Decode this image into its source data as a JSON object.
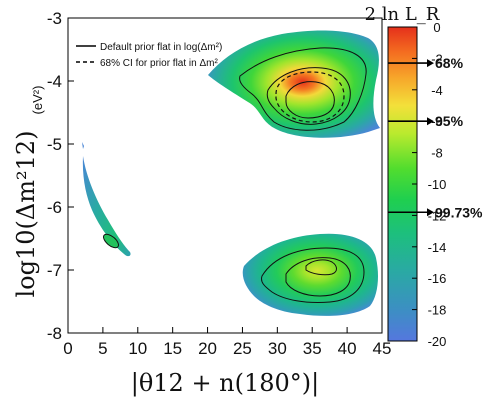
{
  "chart_data": {
    "type": "heatmap",
    "title": "",
    "xlabel": "|θ12 + n(180°)|",
    "ylabel": "log10(Δm²12)",
    "ylabel_unit": "(eV²)",
    "xlim": [
      0,
      45
    ],
    "ylim": [
      -8,
      -3
    ],
    "x_ticks": [
      "0",
      "5",
      "10",
      "15",
      "20",
      "25",
      "30",
      "35",
      "40",
      "45"
    ],
    "y_ticks": [
      "-3",
      "-4",
      "-5",
      "-6",
      "-7",
      "-8"
    ],
    "legend": {
      "placement": "top-left",
      "entries": [
        {
          "label": "Default prior flat in log(Δm²)",
          "style": "solid"
        },
        {
          "label": "68% CI for prior flat in Δm²",
          "style": "dashed"
        }
      ]
    },
    "colorbar": {
      "title": "2 ln L_R",
      "range": [
        -20,
        0
      ],
      "ticks": [
        "0",
        "-2",
        "-4",
        "-6",
        "-8",
        "-10",
        "-12",
        "-14",
        "-16",
        "-18",
        "-20"
      ],
      "colors": [
        "#e23a1c",
        "#f46d20",
        "#f7a52a",
        "#f3e03a",
        "#b9ea2e",
        "#52dd2e",
        "#1fcf4f",
        "#1dbf7e",
        "#2aa9a4",
        "#3c8fc3",
        "#5577de"
      ],
      "credible_levels": [
        {
          "label": "68%",
          "value": -2.3
        },
        {
          "label": "95%",
          "value": -6.0
        },
        {
          "label": "99.73%",
          "value": -11.8
        }
      ]
    },
    "regions": [
      {
        "x_range": [
          20,
          44
        ],
        "y_range": [
          -4.95,
          -3.55
        ],
        "peak": {
          "x": 33.5,
          "y": -4.2
        }
      },
      {
        "x_range": [
          21,
          44
        ],
        "y_range": [
          -7.4,
          -6.4
        ],
        "peak": {
          "x": 34.5,
          "y": -6.85
        }
      },
      {
        "x_range": [
          2,
          12
        ],
        "y_range": [
          -6.65,
          -4.9
        ],
        "peak": {
          "x": 8.5,
          "y": -6.4
        }
      }
    ]
  }
}
